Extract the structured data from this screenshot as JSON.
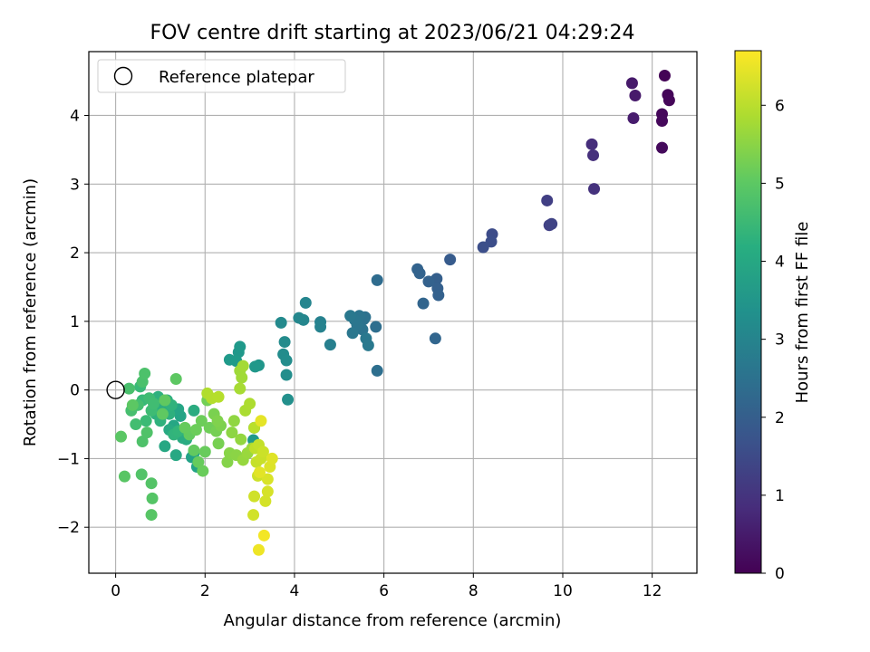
{
  "chart_data": {
    "type": "scatter",
    "title": "FOV centre drift starting at 2023/06/21 04:29:24",
    "xlabel": "Angular distance from reference (arcmin)",
    "ylabel": "Rotation from reference (arcmin)",
    "xlim": [
      -0.6,
      13.0
    ],
    "ylim": [
      -2.67,
      4.93
    ],
    "xticks": [
      0,
      2,
      4,
      6,
      8,
      10,
      12
    ],
    "yticks": [
      -2,
      -1,
      0,
      1,
      2,
      3,
      4
    ],
    "grid": true,
    "legend": {
      "position": "top-left",
      "entries": [
        "Reference platepar"
      ]
    },
    "reference_point": {
      "x": 0,
      "y": 0
    },
    "colorbar": {
      "label": "Hours from first FF file",
      "colormap": "viridis",
      "range": [
        0,
        6.7
      ],
      "ticks": [
        0,
        1,
        2,
        3,
        4,
        5,
        6
      ]
    },
    "points": [
      {
        "x": 12.28,
        "y": 4.58,
        "h": 0.05
      },
      {
        "x": 12.35,
        "y": 4.3,
        "h": 0.08
      },
      {
        "x": 12.38,
        "y": 4.22,
        "h": 0.1
      },
      {
        "x": 12.22,
        "y": 4.02,
        "h": 0.12
      },
      {
        "x": 12.22,
        "y": 3.92,
        "h": 0.14
      },
      {
        "x": 12.22,
        "y": 3.53,
        "h": 0.17
      },
      {
        "x": 11.55,
        "y": 4.47,
        "h": 0.45
      },
      {
        "x": 11.62,
        "y": 4.29,
        "h": 0.48
      },
      {
        "x": 11.58,
        "y": 3.96,
        "h": 0.52
      },
      {
        "x": 10.65,
        "y": 3.58,
        "h": 0.88
      },
      {
        "x": 10.68,
        "y": 3.42,
        "h": 0.92
      },
      {
        "x": 10.7,
        "y": 2.93,
        "h": 0.96
      },
      {
        "x": 9.65,
        "y": 2.76,
        "h": 1.25
      },
      {
        "x": 9.7,
        "y": 2.4,
        "h": 1.3
      },
      {
        "x": 9.75,
        "y": 2.42,
        "h": 1.33
      },
      {
        "x": 8.42,
        "y": 2.27,
        "h": 1.55
      },
      {
        "x": 8.4,
        "y": 2.16,
        "h": 1.58
      },
      {
        "x": 8.22,
        "y": 2.08,
        "h": 1.62
      },
      {
        "x": 7.48,
        "y": 1.9,
        "h": 1.9
      },
      {
        "x": 7.18,
        "y": 1.62,
        "h": 2.0
      },
      {
        "x": 7.2,
        "y": 1.48,
        "h": 2.03
      },
      {
        "x": 7.22,
        "y": 1.38,
        "h": 2.05
      },
      {
        "x": 7.0,
        "y": 1.58,
        "h": 2.08
      },
      {
        "x": 6.75,
        "y": 1.76,
        "h": 2.1
      },
      {
        "x": 6.8,
        "y": 1.7,
        "h": 2.12
      },
      {
        "x": 6.88,
        "y": 1.26,
        "h": 2.15
      },
      {
        "x": 7.15,
        "y": 0.75,
        "h": 2.18
      },
      {
        "x": 5.85,
        "y": 1.6,
        "h": 2.35
      },
      {
        "x": 5.82,
        "y": 0.92,
        "h": 2.4
      },
      {
        "x": 5.85,
        "y": 0.28,
        "h": 2.42
      },
      {
        "x": 5.58,
        "y": 1.06,
        "h": 2.5
      },
      {
        "x": 5.55,
        "y": 1.03,
        "h": 2.52
      },
      {
        "x": 5.52,
        "y": 0.88,
        "h": 2.55
      },
      {
        "x": 5.45,
        "y": 1.08,
        "h": 2.57
      },
      {
        "x": 5.4,
        "y": 0.95,
        "h": 2.6
      },
      {
        "x": 5.35,
        "y": 1.02,
        "h": 2.62
      },
      {
        "x": 5.3,
        "y": 0.83,
        "h": 2.65
      },
      {
        "x": 5.25,
        "y": 1.08,
        "h": 2.68
      },
      {
        "x": 5.6,
        "y": 0.75,
        "h": 2.7
      },
      {
        "x": 5.65,
        "y": 0.65,
        "h": 2.72
      },
      {
        "x": 4.8,
        "y": 0.66,
        "h": 2.9
      },
      {
        "x": 4.58,
        "y": 0.99,
        "h": 2.95
      },
      {
        "x": 4.58,
        "y": 0.92,
        "h": 2.98
      },
      {
        "x": 4.25,
        "y": 1.27,
        "h": 3.05
      },
      {
        "x": 4.2,
        "y": 1.02,
        "h": 3.08
      },
      {
        "x": 4.1,
        "y": 1.05,
        "h": 3.1
      },
      {
        "x": 3.7,
        "y": 0.98,
        "h": 3.2
      },
      {
        "x": 3.78,
        "y": 0.7,
        "h": 3.22
      },
      {
        "x": 3.75,
        "y": 0.52,
        "h": 3.25
      },
      {
        "x": 3.82,
        "y": 0.43,
        "h": 3.28
      },
      {
        "x": 3.82,
        "y": 0.22,
        "h": 3.3
      },
      {
        "x": 3.85,
        "y": -0.14,
        "h": 3.35
      },
      {
        "x": 3.1,
        "y": -0.55,
        "h": 3.5
      },
      {
        "x": 3.2,
        "y": 0.36,
        "h": 3.52
      },
      {
        "x": 3.12,
        "y": 0.34,
        "h": 3.55
      },
      {
        "x": 3.08,
        "y": -0.73,
        "h": 3.6
      },
      {
        "x": 2.75,
        "y": 0.55,
        "h": 3.55
      },
      {
        "x": 2.78,
        "y": 0.63,
        "h": 3.58
      },
      {
        "x": 2.55,
        "y": 0.44,
        "h": 3.62
      },
      {
        "x": 2.7,
        "y": 0.42,
        "h": 3.65
      },
      {
        "x": 1.75,
        "y": -0.92,
        "h": 3.8
      },
      {
        "x": 1.7,
        "y": -0.98,
        "h": 3.83
      },
      {
        "x": 1.82,
        "y": -1.12,
        "h": 3.86
      },
      {
        "x": 1.45,
        "y": -0.38,
        "h": 3.9
      },
      {
        "x": 1.4,
        "y": -0.28,
        "h": 3.93
      },
      {
        "x": 1.3,
        "y": -0.52,
        "h": 3.96
      },
      {
        "x": 1.1,
        "y": -0.82,
        "h": 4.0
      },
      {
        "x": 1.35,
        "y": -0.95,
        "h": 4.02
      },
      {
        "x": 1.2,
        "y": -0.58,
        "h": 4.05
      },
      {
        "x": 1.5,
        "y": -0.7,
        "h": 4.08
      },
      {
        "x": 1.58,
        "y": -0.72,
        "h": 4.1
      },
      {
        "x": 1.75,
        "y": -0.3,
        "h": 4.12
      },
      {
        "x": 1.05,
        "y": -0.25,
        "h": 4.18
      },
      {
        "x": 1.15,
        "y": -0.15,
        "h": 4.2
      },
      {
        "x": 1.2,
        "y": -0.35,
        "h": 4.22
      },
      {
        "x": 0.95,
        "y": -0.1,
        "h": 4.25
      },
      {
        "x": 0.9,
        "y": -0.35,
        "h": 4.28
      },
      {
        "x": 1.0,
        "y": -0.45,
        "h": 4.3
      },
      {
        "x": 1.25,
        "y": -0.22,
        "h": 4.33
      },
      {
        "x": 1.3,
        "y": -0.65,
        "h": 4.35
      },
      {
        "x": 1.4,
        "y": -0.6,
        "h": 4.4
      },
      {
        "x": 0.6,
        "y": -0.15,
        "h": 4.5
      },
      {
        "x": 0.55,
        "y": 0.05,
        "h": 4.52
      },
      {
        "x": 0.68,
        "y": -0.45,
        "h": 4.55
      },
      {
        "x": 0.8,
        "y": -0.3,
        "h": 4.58
      },
      {
        "x": 0.75,
        "y": -0.12,
        "h": 4.6
      },
      {
        "x": 0.85,
        "y": -0.2,
        "h": 4.62
      },
      {
        "x": 0.45,
        "y": -0.5,
        "h": 4.65
      },
      {
        "x": 0.5,
        "y": -0.22,
        "h": 4.68
      },
      {
        "x": 0.35,
        "y": -0.3,
        "h": 4.7
      },
      {
        "x": 0.3,
        "y": 0.02,
        "h": 4.73
      },
      {
        "x": 0.6,
        "y": 0.12,
        "h": 4.76
      },
      {
        "x": 0.65,
        "y": 0.24,
        "h": 4.78
      },
      {
        "x": 0.6,
        "y": -0.75,
        "h": 4.8
      },
      {
        "x": 0.7,
        "y": -0.62,
        "h": 4.82
      },
      {
        "x": 0.58,
        "y": -1.23,
        "h": 4.85
      },
      {
        "x": 0.8,
        "y": -1.36,
        "h": 4.87
      },
      {
        "x": 0.82,
        "y": -1.58,
        "h": 4.89
      },
      {
        "x": 0.8,
        "y": -1.82,
        "h": 4.91
      },
      {
        "x": 0.2,
        "y": -1.26,
        "h": 4.93
      },
      {
        "x": 0.12,
        "y": -0.68,
        "h": 4.95
      },
      {
        "x": 0.38,
        "y": -0.22,
        "h": 4.97
      },
      {
        "x": 1.35,
        "y": 0.16,
        "h": 4.99
      },
      {
        "x": 1.05,
        "y": -0.35,
        "h": 5.01
      },
      {
        "x": 1.1,
        "y": -0.15,
        "h": 5.03
      },
      {
        "x": 1.75,
        "y": -0.88,
        "h": 5.05
      },
      {
        "x": 1.65,
        "y": -0.65,
        "h": 5.07
      },
      {
        "x": 1.55,
        "y": -0.55,
        "h": 5.09
      },
      {
        "x": 1.85,
        "y": -1.05,
        "h": 5.11
      },
      {
        "x": 2.0,
        "y": -0.9,
        "h": 5.13
      },
      {
        "x": 1.95,
        "y": -1.18,
        "h": 5.15
      },
      {
        "x": 1.8,
        "y": -0.58,
        "h": 5.17
      },
      {
        "x": 1.92,
        "y": -0.45,
        "h": 5.19
      },
      {
        "x": 2.1,
        "y": -0.55,
        "h": 5.21
      },
      {
        "x": 2.05,
        "y": -0.15,
        "h": 5.25
      },
      {
        "x": 2.25,
        "y": -0.6,
        "h": 5.28
      },
      {
        "x": 2.3,
        "y": -0.78,
        "h": 5.31
      },
      {
        "x": 2.2,
        "y": -0.35,
        "h": 5.34
      },
      {
        "x": 2.35,
        "y": -0.52,
        "h": 5.37
      },
      {
        "x": 2.28,
        "y": -0.45,
        "h": 5.4
      },
      {
        "x": 2.5,
        "y": -1.05,
        "h": 5.45
      },
      {
        "x": 2.55,
        "y": -0.92,
        "h": 5.48
      },
      {
        "x": 2.7,
        "y": -0.95,
        "h": 5.51
      },
      {
        "x": 2.6,
        "y": -0.62,
        "h": 5.54
      },
      {
        "x": 2.65,
        "y": -0.45,
        "h": 5.57
      },
      {
        "x": 2.8,
        "y": -0.72,
        "h": 5.6
      },
      {
        "x": 2.85,
        "y": -1.02,
        "h": 5.63
      },
      {
        "x": 2.95,
        "y": -0.92,
        "h": 5.66
      },
      {
        "x": 3.05,
        "y": -0.85,
        "h": 5.69
      },
      {
        "x": 2.78,
        "y": 0.28,
        "h": 5.72
      },
      {
        "x": 2.82,
        "y": 0.18,
        "h": 5.75
      },
      {
        "x": 2.85,
        "y": 0.35,
        "h": 5.78
      },
      {
        "x": 2.78,
        "y": 0.02,
        "h": 5.81
      },
      {
        "x": 2.9,
        "y": -0.3,
        "h": 5.84
      },
      {
        "x": 3.0,
        "y": -0.2,
        "h": 5.87
      },
      {
        "x": 2.05,
        "y": -0.05,
        "h": 5.9
      },
      {
        "x": 2.15,
        "y": -0.12,
        "h": 5.93
      },
      {
        "x": 2.3,
        "y": -0.1,
        "h": 5.96
      },
      {
        "x": 3.1,
        "y": -0.55,
        "h": 6.0
      },
      {
        "x": 3.12,
        "y": -0.85,
        "h": 6.05
      },
      {
        "x": 3.2,
        "y": -0.8,
        "h": 6.1
      },
      {
        "x": 3.15,
        "y": -1.05,
        "h": 6.12
      },
      {
        "x": 3.25,
        "y": -1.0,
        "h": 6.15
      },
      {
        "x": 3.3,
        "y": -0.9,
        "h": 6.18
      },
      {
        "x": 3.18,
        "y": -1.25,
        "h": 6.2
      },
      {
        "x": 3.1,
        "y": -1.55,
        "h": 6.22
      },
      {
        "x": 3.08,
        "y": -1.82,
        "h": 6.25
      },
      {
        "x": 3.35,
        "y": -1.62,
        "h": 6.28
      },
      {
        "x": 3.4,
        "y": -1.48,
        "h": 6.3
      },
      {
        "x": 3.4,
        "y": -1.3,
        "h": 6.33
      },
      {
        "x": 3.45,
        "y": -1.12,
        "h": 6.36
      },
      {
        "x": 3.5,
        "y": -1.0,
        "h": 6.39
      },
      {
        "x": 3.22,
        "y": -1.2,
        "h": 6.42
      },
      {
        "x": 3.25,
        "y": -0.45,
        "h": 6.45
      },
      {
        "x": 3.2,
        "y": -2.33,
        "h": 6.55
      },
      {
        "x": 3.32,
        "y": -2.12,
        "h": 6.6
      }
    ]
  }
}
